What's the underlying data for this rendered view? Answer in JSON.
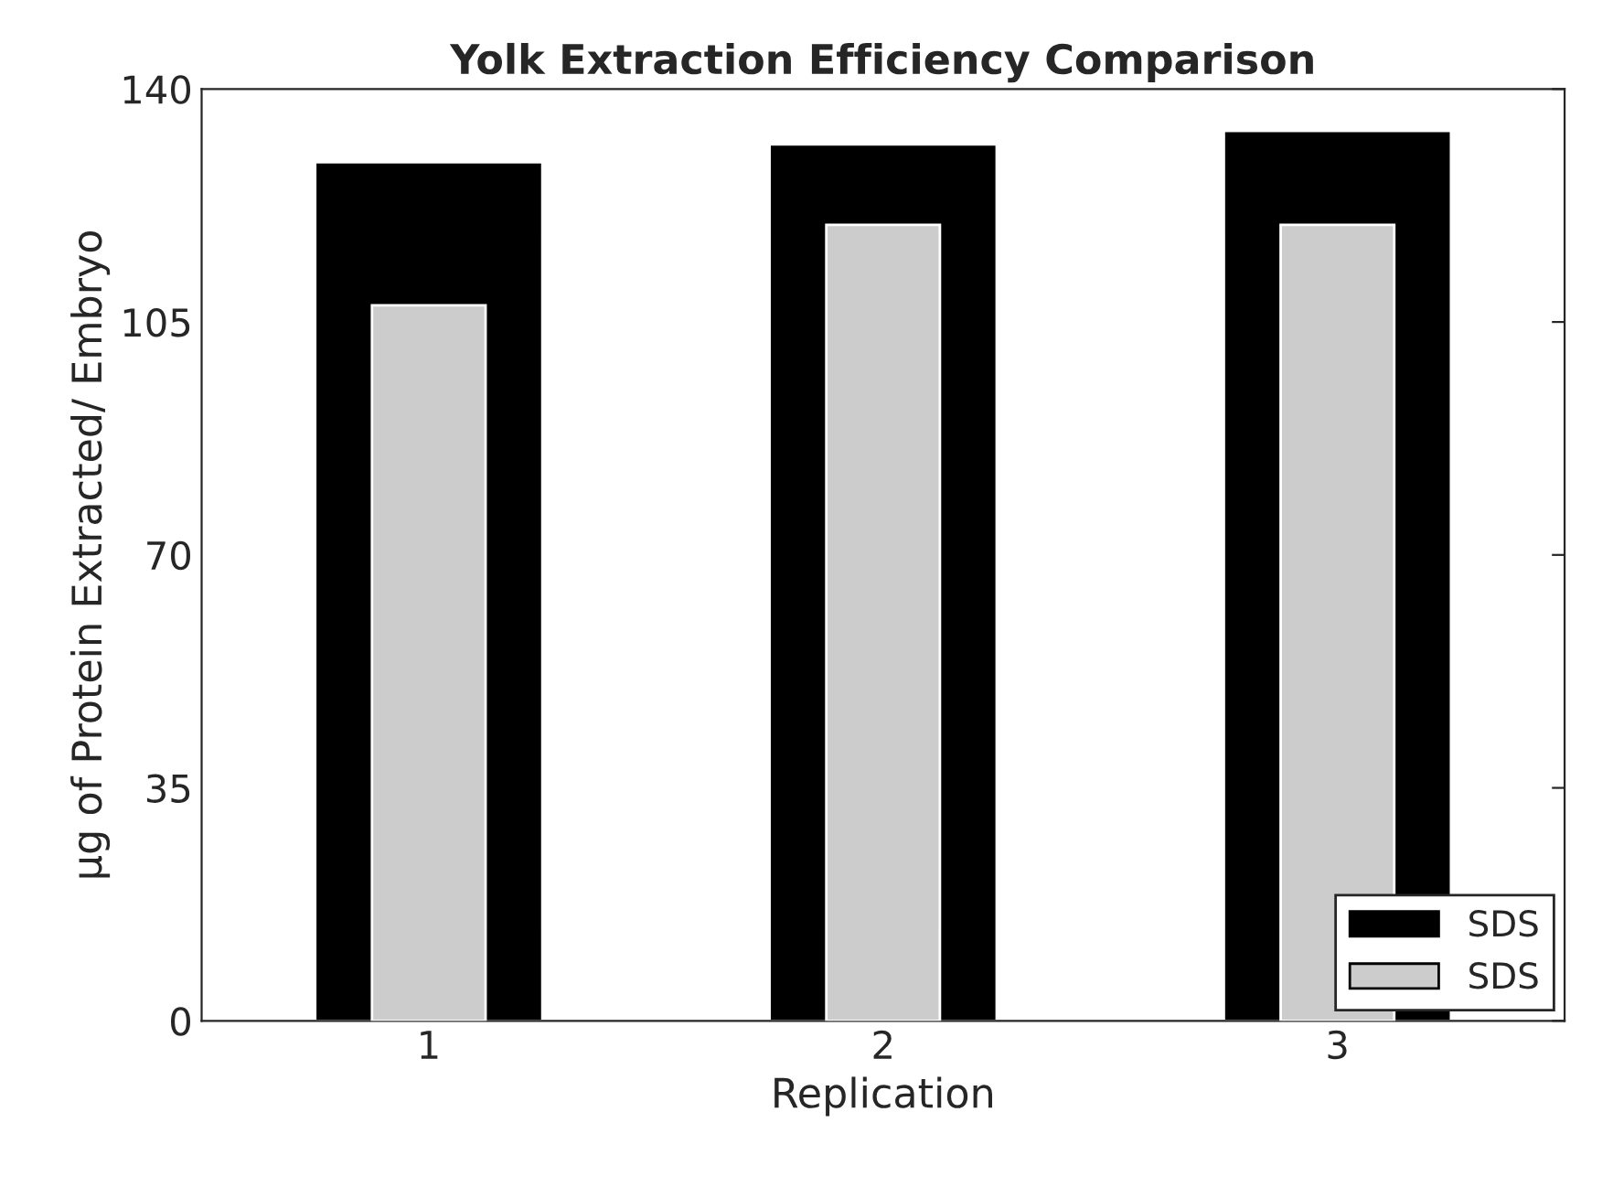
{
  "chart_data": {
    "type": "bar",
    "title": "Yolk Extraction Efficiency Comparison",
    "xlabel": "Replication",
    "ylabel": "µg of Protein Extracted/ Embryo",
    "categories": [
      "1",
      "2",
      "3"
    ],
    "series": [
      {
        "name": "SDS",
        "color": "#000000",
        "values": [
          129,
          131.7,
          133.7
        ]
      },
      {
        "name": "SDS",
        "color": "#cccccc",
        "values": [
          107.5,
          119.6,
          119.6
        ]
      }
    ],
    "ylim": [
      0,
      140
    ],
    "yticks": [
      0,
      35,
      70,
      105,
      140
    ],
    "grid": false,
    "legend": "bottom right"
  }
}
